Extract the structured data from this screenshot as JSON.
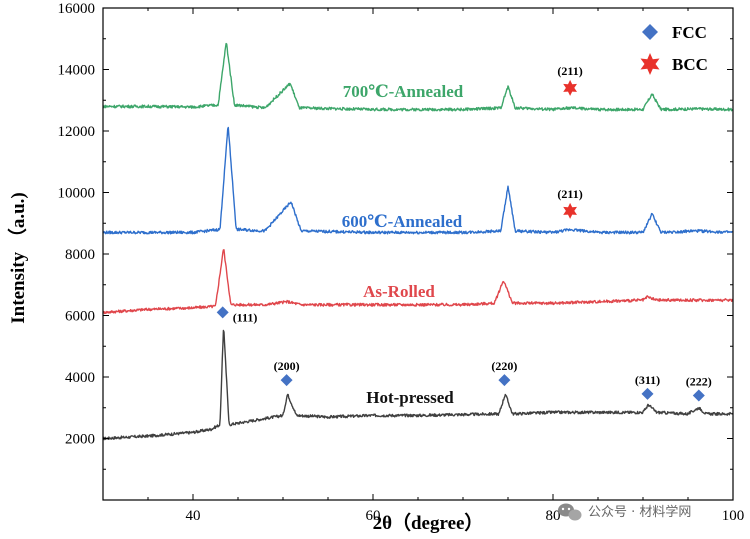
{
  "chart_data": {
    "type": "line",
    "title": "",
    "xlabel": "2θ（degree）",
    "ylabel": "Intensity （a.u.)",
    "xlim": [
      30,
      100
    ],
    "ylim": [
      0,
      16000
    ],
    "xticks": [
      40,
      60,
      80,
      100
    ],
    "yticks": [
      2000,
      4000,
      6000,
      8000,
      10000,
      12000,
      14000,
      16000
    ],
    "grid": false,
    "legend": {
      "position": "top-right",
      "entries": [
        {
          "label": "FCC",
          "marker": "diamond",
          "color": "#4472c4"
        },
        {
          "label": "BCC",
          "marker": "star",
          "color": "#e8322b"
        }
      ]
    },
    "series": [
      {
        "name": "Hot-pressed",
        "color": "#404040",
        "x": [
          30,
          35,
          40,
          42,
          43,
          43.4,
          44,
          46,
          50,
          50.5,
          51.5,
          55,
          60,
          65,
          70,
          74,
          74.7,
          75.5,
          80,
          85,
          90,
          90.6,
          91.5,
          95,
          96.2,
          97,
          100
        ],
        "y": [
          2000,
          2080,
          2200,
          2300,
          2450,
          5700,
          2450,
          2550,
          2750,
          3450,
          2750,
          2700,
          2750,
          2750,
          2780,
          2800,
          3450,
          2800,
          2850,
          2850,
          2850,
          3100,
          2850,
          2800,
          3000,
          2800,
          2800
        ]
      },
      {
        "name": "As-Rolled",
        "color": "#e0474c",
        "x": [
          30,
          35,
          40,
          42.5,
          43.4,
          44.2,
          48,
          50.5,
          52,
          60,
          70,
          73.5,
          74.5,
          75.5,
          80,
          90,
          90.5,
          91.5,
          96,
          100
        ],
        "y": [
          6100,
          6200,
          6250,
          6300,
          8200,
          6350,
          6350,
          6450,
          6350,
          6350,
          6350,
          6400,
          7150,
          6400,
          6400,
          6500,
          6600,
          6500,
          6500,
          6500
        ]
      },
      {
        "name": "600℃-Annealed",
        "color": "#2e6fcc",
        "x": [
          30,
          35,
          40,
          43,
          43.9,
          44.8,
          48,
          50.9,
          52,
          60,
          70,
          74.2,
          75,
          75.8,
          80,
          82,
          85,
          90,
          91,
          92,
          96,
          100
        ],
        "y": [
          8700,
          8700,
          8700,
          8800,
          12200,
          8800,
          8750,
          9700,
          8750,
          8700,
          8700,
          8750,
          10200,
          8750,
          8700,
          8800,
          8700,
          8700,
          9300,
          8700,
          8750,
          8700
        ]
      },
      {
        "name": "700℃-Annealed",
        "color": "#3da66a",
        "x": [
          30,
          35,
          40,
          42.8,
          43.7,
          44.6,
          48,
          50.8,
          51.8,
          60,
          70,
          74.2,
          75,
          75.8,
          80,
          82,
          85,
          90,
          91,
          92,
          96,
          100
        ],
        "y": [
          12800,
          12800,
          12780,
          12850,
          14900,
          12850,
          12750,
          13550,
          12750,
          12700,
          12700,
          12750,
          13450,
          12750,
          12700,
          12750,
          12700,
          12700,
          13200,
          12700,
          12720,
          12700
        ]
      }
    ],
    "annotations": [
      {
        "text": "(111)",
        "x": 43.3,
        "y": 6100,
        "marker": "diamond"
      },
      {
        "text": "(200)",
        "x": 50.4,
        "y": 3900,
        "marker": "diamond"
      },
      {
        "text": "(220)",
        "x": 74.6,
        "y": 3900,
        "marker": "diamond"
      },
      {
        "text": "(311)",
        "x": 90.5,
        "y": 3450,
        "marker": "diamond"
      },
      {
        "text": "(222)",
        "x": 96.2,
        "y": 3400,
        "marker": "diamond"
      },
      {
        "text": "(211)",
        "x": 81.9,
        "y": 9400,
        "marker": "star"
      },
      {
        "text": "(211)",
        "x": 81.9,
        "y": 13400,
        "marker": "star"
      }
    ],
    "series_labels": [
      {
        "text": "Hot-pressed"
      },
      {
        "text": "As-Rolled"
      },
      {
        "text": "600℃-Annealed"
      },
      {
        "text": "700℃-Annealed"
      }
    ]
  },
  "watermark": "公众号 · 材料学网"
}
